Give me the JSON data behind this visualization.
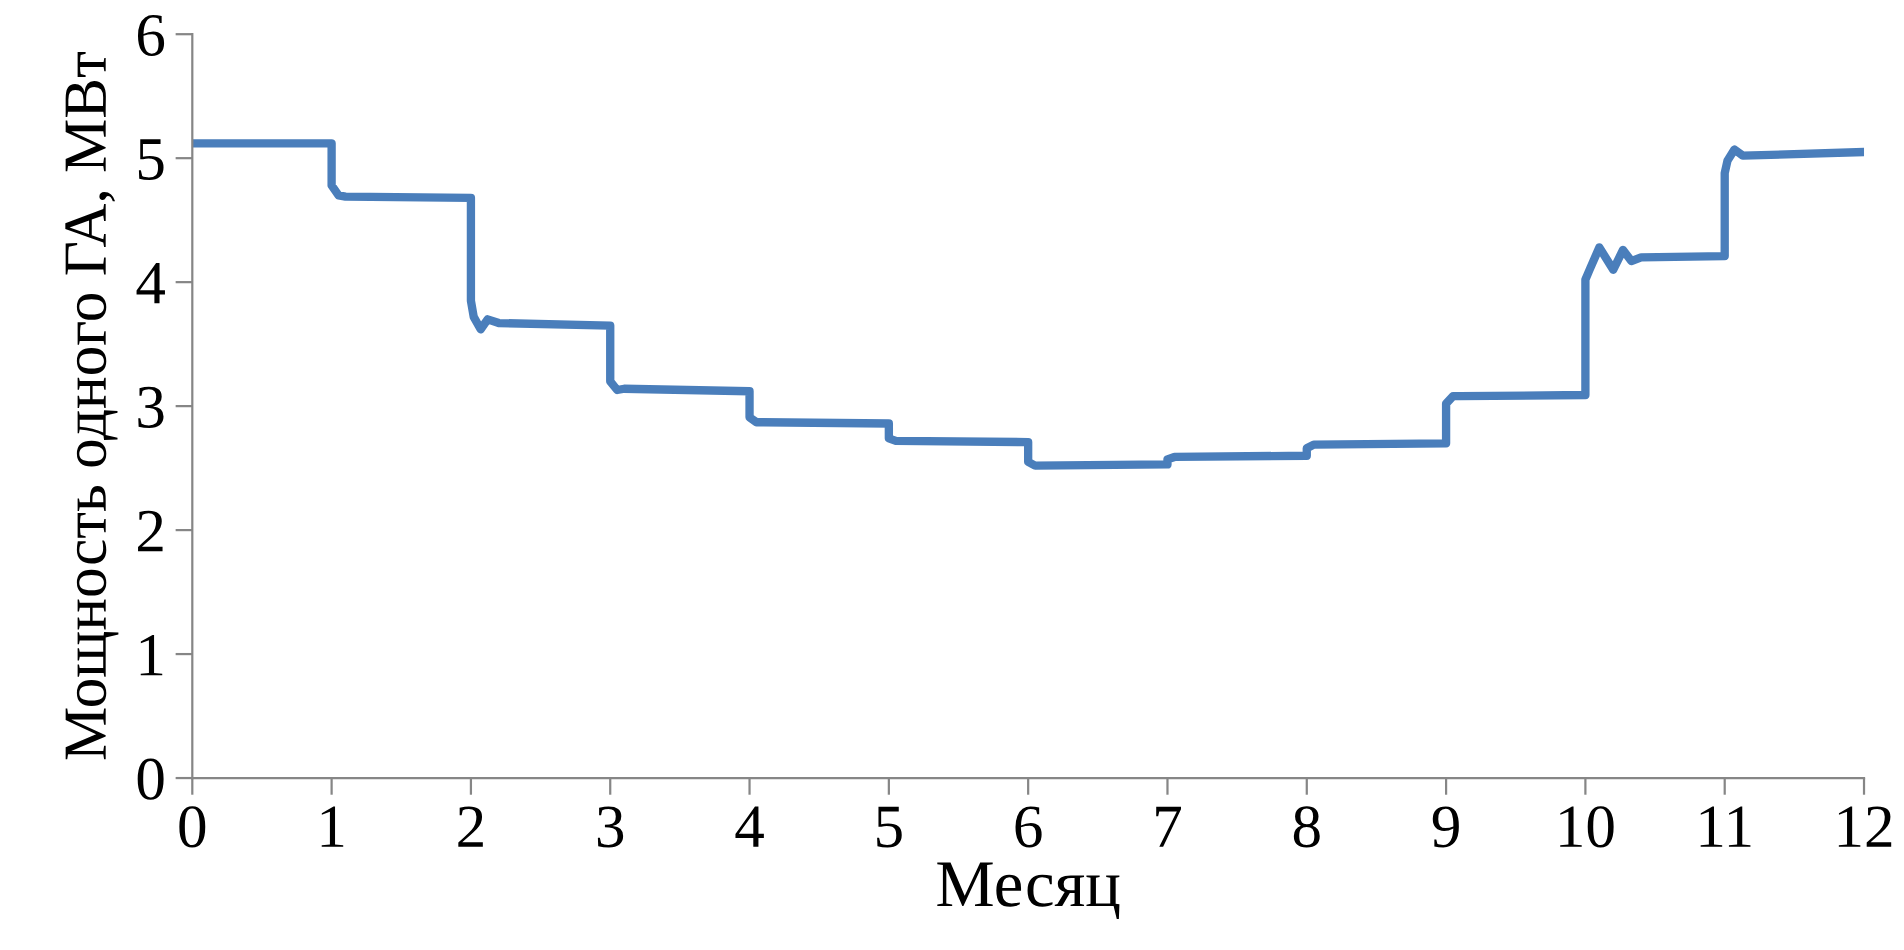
{
  "chart_data": {
    "type": "line",
    "xlabel": "Месяц",
    "ylabel": "Мощность одного ГА, МВт",
    "xlim": [
      0,
      12
    ],
    "ylim": [
      0,
      6
    ],
    "xticks": [
      0,
      1,
      2,
      3,
      4,
      5,
      6,
      7,
      8,
      9,
      10,
      11,
      12
    ],
    "yticks": [
      0,
      1,
      2,
      3,
      4,
      5,
      6
    ],
    "grid": false,
    "marker": "none",
    "line_style": "solid",
    "series": [
      {
        "color": "#4a7ebb",
        "x": [
          0,
          1,
          1.0,
          1.05,
          1.1,
          2,
          2.0,
          2.02,
          2.07,
          2.12,
          2.2,
          3,
          3.0,
          3.05,
          3.1,
          4,
          4.0,
          4.05,
          4.1,
          5,
          5.0,
          5.05,
          6,
          6.0,
          6.05,
          7,
          7.0,
          7.05,
          8,
          8.0,
          8.05,
          9,
          9.0,
          9.05,
          9.1,
          10,
          10.0,
          10.03,
          10.1,
          10.2,
          10.27,
          10.33,
          10.4,
          11,
          11.0,
          11.02,
          11.07,
          11.13,
          12
        ],
        "values": [
          5.12,
          5.12,
          4.78,
          4.7,
          4.69,
          4.68,
          3.85,
          3.72,
          3.62,
          3.7,
          3.67,
          3.65,
          3.2,
          3.13,
          3.14,
          3.12,
          2.91,
          2.87,
          2.87,
          2.86,
          2.74,
          2.72,
          2.71,
          2.55,
          2.52,
          2.53,
          2.57,
          2.59,
          2.6,
          2.66,
          2.69,
          2.7,
          3.02,
          3.08,
          3.08,
          3.09,
          4.02,
          4.1,
          4.28,
          4.1,
          4.26,
          4.17,
          4.2,
          4.21,
          4.88,
          4.98,
          5.07,
          5.02,
          5.05
        ]
      }
    ]
  }
}
